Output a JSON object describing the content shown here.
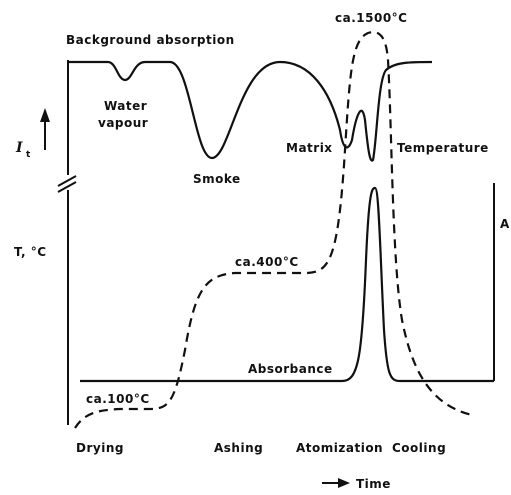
{
  "labels": {
    "peak_temp": "ca.1500°C",
    "background": "Background absorption",
    "water": [
      "Water",
      "vapour"
    ],
    "smoke": "Smoke",
    "matrix": "Matrix",
    "temperature": "Temperature",
    "intensity": "I",
    "intensity_sub": "t",
    "temp_axis": "T, °C",
    "ashing_temp": "ca.400°C",
    "absorbance_axis": "A",
    "absorbance": "Absorbance",
    "drying_temp": "ca.100°C"
  },
  "stages": [
    "Drying",
    "Ashing",
    "Atomization",
    "Cooling"
  ],
  "time_axis": "Time"
}
